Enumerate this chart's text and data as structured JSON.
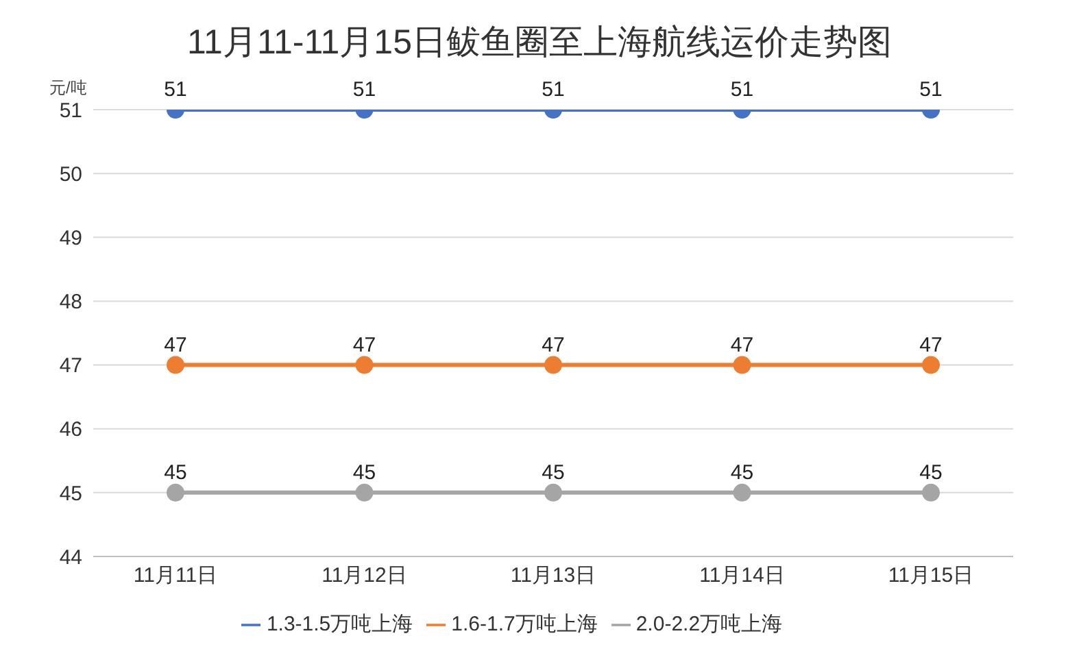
{
  "chart_data": {
    "type": "line",
    "title": "11月11-11月15日鲅鱼圈至上海航线运价走势图",
    "ylabel": "元/吨",
    "categories": [
      "11月11日",
      "11月12日",
      "11月13日",
      "11月14日",
      "11月15日"
    ],
    "series": [
      {
        "name": "1.3-1.5万吨上海",
        "color": "#4472c4",
        "values": [
          51,
          51,
          51,
          51,
          51
        ]
      },
      {
        "name": "1.6-1.7万吨上海",
        "color": "#ed7d31",
        "values": [
          47,
          47,
          47,
          47,
          47
        ]
      },
      {
        "name": "2.0-2.2万吨上海",
        "color": "#a5a5a5",
        "values": [
          45,
          45,
          45,
          45,
          45
        ]
      }
    ],
    "ylim": [
      44,
      51
    ],
    "yticks": [
      44,
      45,
      46,
      47,
      48,
      49,
      50,
      51
    ],
    "grid": "y",
    "legend": "bottom",
    "marker": "circle",
    "line_style": "solid",
    "data_labels": true
  }
}
